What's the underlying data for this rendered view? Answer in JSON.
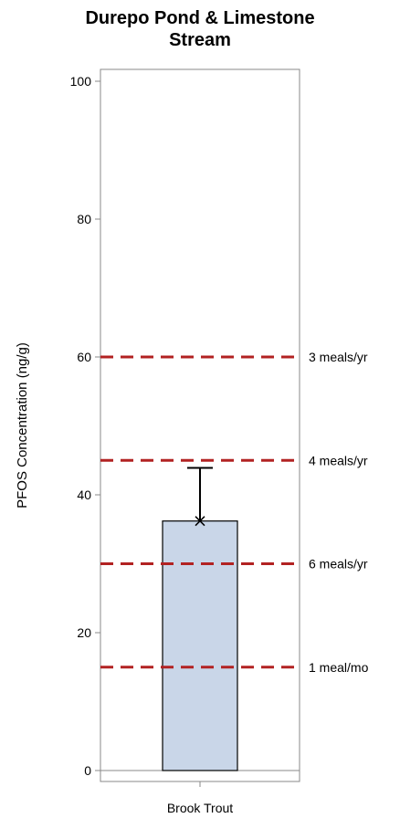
{
  "chart_data": {
    "type": "bar",
    "title_line1": "Durepo Pond & Limestone",
    "title_line2": "Stream",
    "ylabel": "PFOS Concentration (ng/g)",
    "xlabel": "",
    "ylim": [
      0,
      100
    ],
    "y_ticks": [
      0,
      20,
      40,
      60,
      80,
      100
    ],
    "grid": false,
    "categories": [
      "Brook Trout"
    ],
    "values": [
      36.2
    ],
    "error_upper": [
      43.9
    ],
    "mean_marker": [
      36.2
    ],
    "reference_lines": [
      {
        "value": 60,
        "label": "3 meals/yr"
      },
      {
        "value": 45,
        "label": "4 meals/yr"
      },
      {
        "value": 30,
        "label": "6 meals/yr"
      },
      {
        "value": 15,
        "label": "1 meal/mo"
      }
    ],
    "colors": {
      "bar_fill": "#c9d6e8",
      "bar_stroke": "#000000",
      "reference_line": "#b22222",
      "axis": "#888888"
    }
  }
}
